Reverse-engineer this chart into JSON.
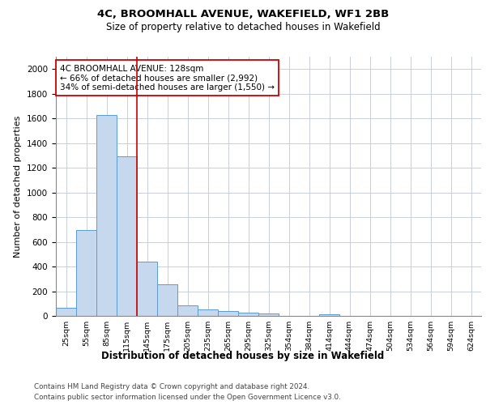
{
  "title1": "4C, BROOMHALL AVENUE, WAKEFIELD, WF1 2BB",
  "title2": "Size of property relative to detached houses in Wakefield",
  "xlabel": "Distribution of detached houses by size in Wakefield",
  "ylabel": "Number of detached properties",
  "bar_color": "#c5d8ed",
  "bar_edge_color": "#5b9bd5",
  "categories": [
    "25sqm",
    "55sqm",
    "85sqm",
    "115sqm",
    "145sqm",
    "175sqm",
    "205sqm",
    "235sqm",
    "265sqm",
    "295sqm",
    "325sqm",
    "354sqm",
    "384sqm",
    "414sqm",
    "444sqm",
    "474sqm",
    "504sqm",
    "534sqm",
    "564sqm",
    "594sqm",
    "624sqm"
  ],
  "values": [
    68,
    695,
    1630,
    1290,
    440,
    255,
    88,
    55,
    38,
    28,
    18,
    0,
    0,
    15,
    0,
    0,
    0,
    0,
    0,
    0,
    0
  ],
  "vline_color": "#cc0000",
  "annotation_text": "4C BROOMHALL AVENUE: 128sqm\n← 66% of detached houses are smaller (2,992)\n34% of semi-detached houses are larger (1,550) →",
  "annotation_box_color": "#ffffff",
  "annotation_box_edge": "#cc0000",
  "ylim": [
    0,
    2100
  ],
  "yticks": [
    0,
    200,
    400,
    600,
    800,
    1000,
    1200,
    1400,
    1600,
    1800,
    2000
  ],
  "footer1": "Contains HM Land Registry data © Crown copyright and database right 2024.",
  "footer2": "Contains public sector information licensed under the Open Government Licence v3.0.",
  "background_color": "#ffffff",
  "grid_color": "#c0c8d8"
}
